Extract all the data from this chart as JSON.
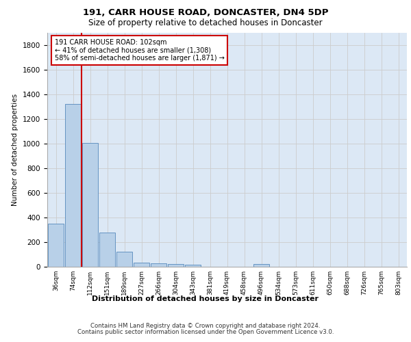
{
  "title1": "191, CARR HOUSE ROAD, DONCASTER, DN4 5DP",
  "title2": "Size of property relative to detached houses in Doncaster",
  "xlabel": "Distribution of detached houses by size in Doncaster",
  "ylabel": "Number of detached properties",
  "bins": [
    "36sqm",
    "74sqm",
    "112sqm",
    "151sqm",
    "189sqm",
    "227sqm",
    "266sqm",
    "304sqm",
    "343sqm",
    "381sqm",
    "419sqm",
    "458sqm",
    "496sqm",
    "534sqm",
    "573sqm",
    "611sqm",
    "650sqm",
    "688sqm",
    "726sqm",
    "765sqm",
    "803sqm"
  ],
  "values": [
    350,
    1320,
    1005,
    280,
    120,
    35,
    28,
    20,
    14,
    0,
    0,
    0,
    20,
    0,
    0,
    0,
    0,
    0,
    0,
    0,
    0
  ],
  "bar_color": "#b8d0e8",
  "bar_edge_color": "#5588bb",
  "subject_line_color": "#cc0000",
  "annotation_text": "191 CARR HOUSE ROAD: 102sqm\n← 41% of detached houses are smaller (1,308)\n58% of semi-detached houses are larger (1,871) →",
  "annotation_box_color": "#ffffff",
  "annotation_box_edge": "#cc0000",
  "grid_color": "#cccccc",
  "background_color": "#dce8f5",
  "footer1": "Contains HM Land Registry data © Crown copyright and database right 2024.",
  "footer2": "Contains public sector information licensed under the Open Government Licence v3.0.",
  "ylim": [
    0,
    1900
  ],
  "yticks": [
    0,
    200,
    400,
    600,
    800,
    1000,
    1200,
    1400,
    1600,
    1800
  ]
}
